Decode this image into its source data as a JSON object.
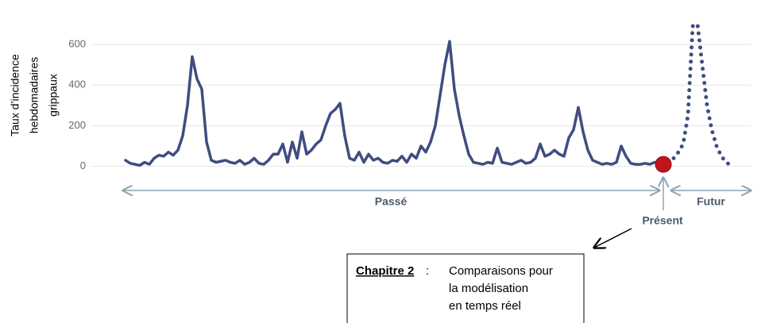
{
  "chart_data": {
    "type": "line",
    "y_label": [
      "Taux d’incidence",
      "hebdomadaires",
      "grippaux"
    ],
    "ylim": [
      -60,
      760
    ],
    "yticks": [
      0,
      200,
      400,
      600
    ],
    "grid": true,
    "series": [
      {
        "name": "Passé",
        "color": "#3f4d80",
        "style": "solid",
        "values": [
          30,
          15,
          10,
          5,
          20,
          10,
          40,
          55,
          50,
          70,
          55,
          80,
          150,
          300,
          540,
          430,
          380,
          120,
          30,
          20,
          25,
          30,
          20,
          15,
          30,
          10,
          20,
          40,
          15,
          10,
          30,
          60,
          60,
          110,
          20,
          120,
          40,
          170,
          60,
          80,
          110,
          130,
          200,
          260,
          280,
          310,
          150,
          40,
          30,
          70,
          20,
          60,
          30,
          40,
          20,
          15,
          30,
          25,
          50,
          20,
          60,
          40,
          100,
          70,
          120,
          200,
          350,
          500,
          615,
          380,
          250,
          150,
          60,
          20,
          15,
          10,
          20,
          15,
          90,
          20,
          15,
          10,
          20,
          30,
          15,
          20,
          40,
          110,
          50,
          60,
          80,
          60,
          50,
          140,
          180,
          290,
          170,
          80,
          30,
          20,
          10,
          15,
          10,
          20,
          100,
          50,
          15,
          10,
          10,
          15,
          10,
          20
        ]
      },
      {
        "name": "Futur",
        "color": "#3f4d80",
        "style": "dotted",
        "values": [
          40,
          70,
          110,
          250,
          690,
          700,
          500,
          300,
          180,
          100,
          50,
          20,
          5
        ]
      }
    ],
    "present_marker": {
      "value": 10,
      "color": "#c0141c"
    },
    "annotations": {
      "past": "Passé",
      "future": "Futur",
      "present": "Présent"
    },
    "box": {
      "title": "Chapitre 2",
      "separator": ":",
      "lines": [
        "Comparaisons  pour",
        "la modélisation",
        "en temps réel"
      ]
    }
  }
}
